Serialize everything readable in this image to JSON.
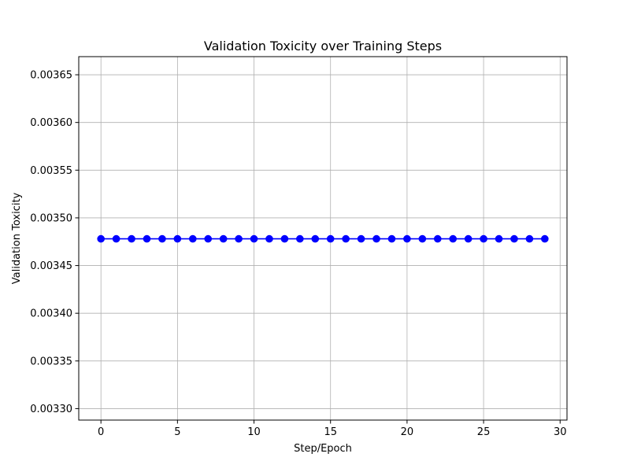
{
  "chart_data": {
    "type": "line",
    "title": "Validation Toxicity over Training Steps",
    "xlabel": "Step/Epoch",
    "ylabel": "Validation Toxicity",
    "xlim": [
      -1.45,
      30.45
    ],
    "ylim": [
      0.003288,
      0.003669
    ],
    "xticks": [
      0,
      5,
      10,
      15,
      20,
      25,
      30
    ],
    "yticks": [
      0.0033,
      0.00335,
      0.0034,
      0.00345,
      0.0035,
      0.00355,
      0.0036,
      0.00365
    ],
    "xtick_labels": [
      "0",
      "5",
      "10",
      "15",
      "20",
      "25",
      "30"
    ],
    "ytick_labels": [
      "0.00330",
      "0.00335",
      "0.00340",
      "0.00345",
      "0.00350",
      "0.00355",
      "0.00360",
      "0.00365"
    ],
    "grid": true,
    "series": [
      {
        "color": "#0000ff",
        "marker": "circle",
        "x": [
          0,
          1,
          2,
          3,
          4,
          5,
          6,
          7,
          8,
          9,
          10,
          11,
          12,
          13,
          14,
          15,
          16,
          17,
          18,
          19,
          20,
          21,
          22,
          23,
          24,
          25,
          26,
          27,
          28,
          29
        ],
        "y": [
          0.003478,
          0.003478,
          0.003478,
          0.003478,
          0.003478,
          0.003478,
          0.003478,
          0.003478,
          0.003478,
          0.003478,
          0.003478,
          0.003478,
          0.003478,
          0.003478,
          0.003478,
          0.003478,
          0.003478,
          0.003478,
          0.003478,
          0.003478,
          0.003478,
          0.003478,
          0.003478,
          0.003478,
          0.003478,
          0.003478,
          0.003478,
          0.003478,
          0.003478,
          0.003478
        ]
      }
    ]
  }
}
